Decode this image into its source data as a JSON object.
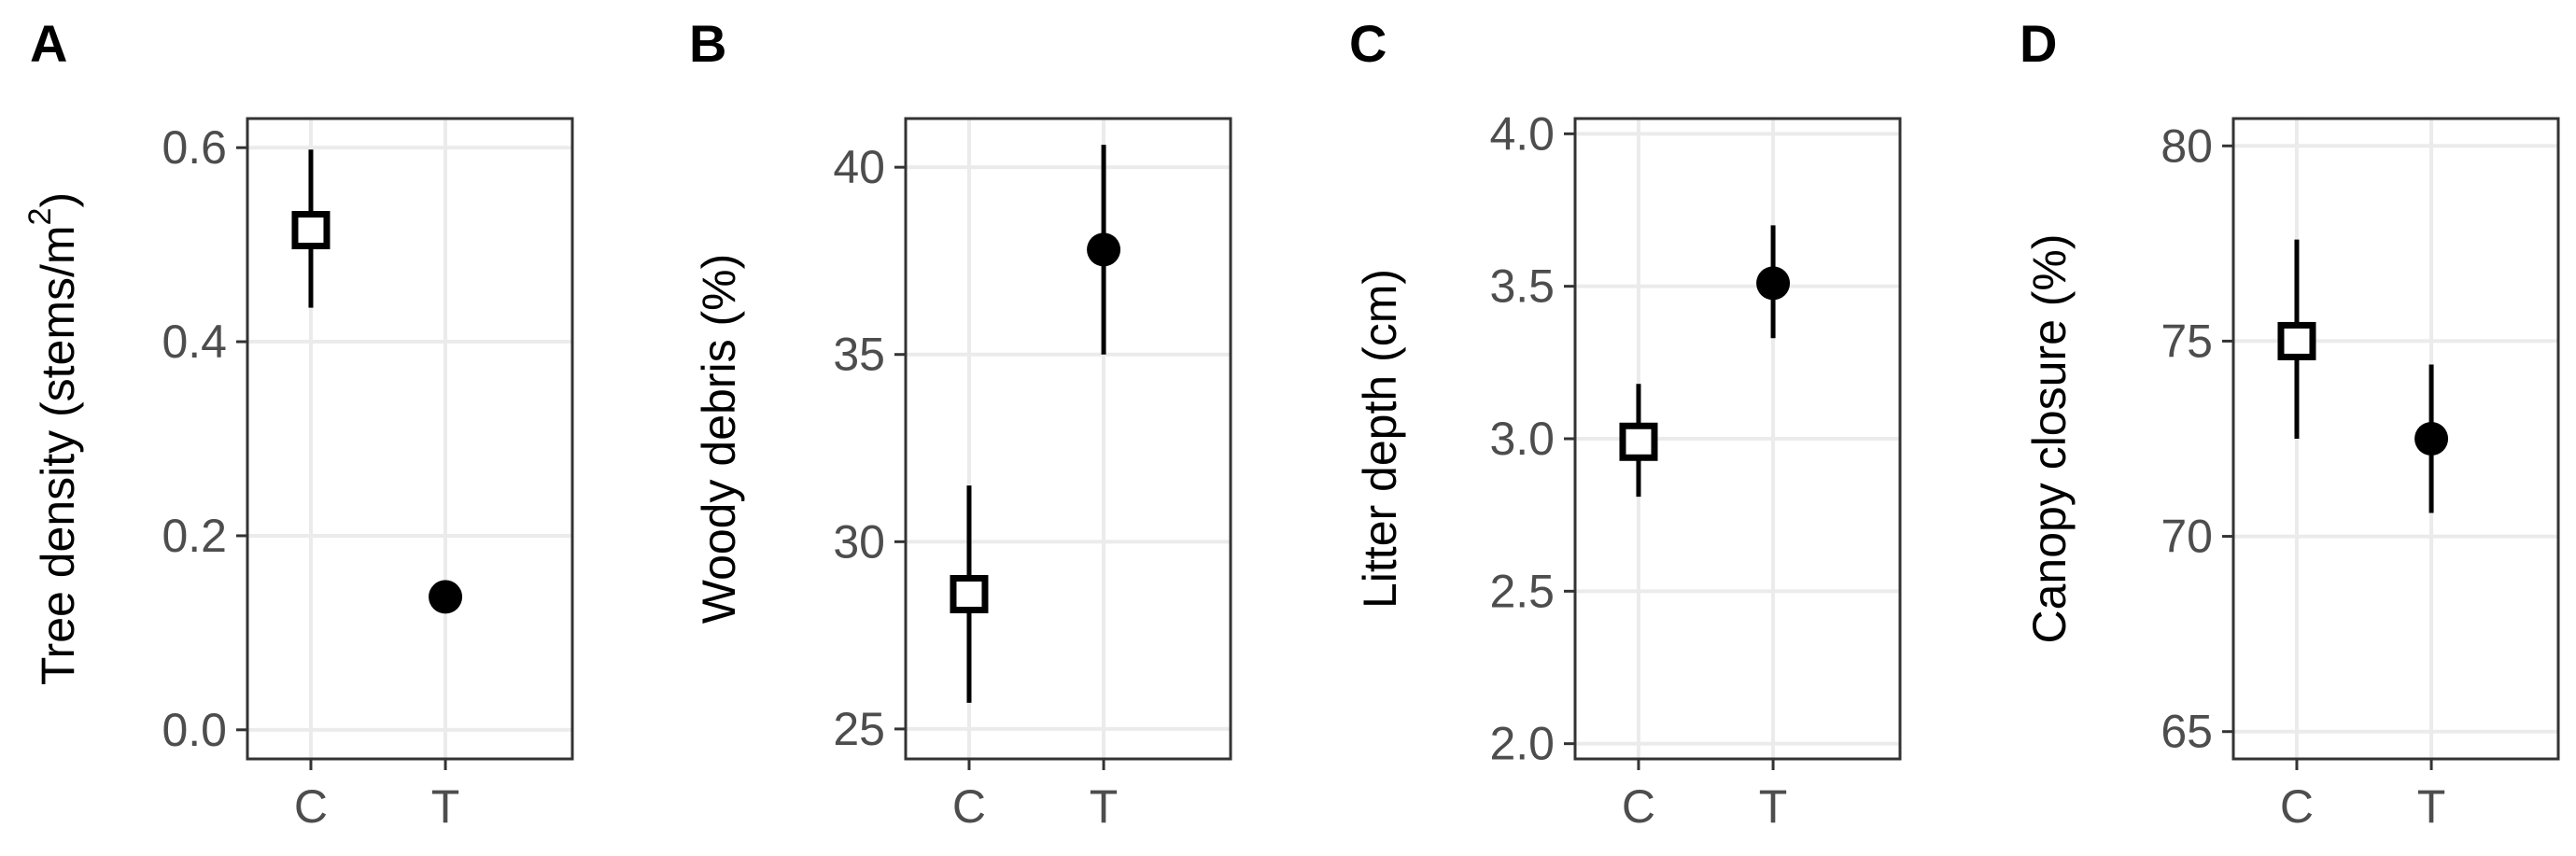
{
  "chart_data": [
    {
      "panel": "A",
      "type": "scatter",
      "ylabel": "Tree density (stems/m²)",
      "ylabel_main": "Tree density (stems/m",
      "ylabel_sup": "2",
      "ylabel_end": ")",
      "categories": [
        "C",
        "T"
      ],
      "ylim": [
        -0.03,
        0.63
      ],
      "yticks": [
        0.0,
        0.2,
        0.4,
        0.6
      ],
      "yticklabels": [
        "0.0",
        "0.2",
        "0.4",
        "0.6"
      ],
      "points": [
        {
          "x": "C",
          "y": 0.515,
          "lower": 0.435,
          "upper": 0.598,
          "marker": "open-square"
        },
        {
          "x": "T",
          "y": 0.137,
          "lower": 0.124,
          "upper": 0.15,
          "marker": "filled-circle"
        }
      ]
    },
    {
      "panel": "B",
      "type": "scatter",
      "ylabel": "Woody debris (%)",
      "categories": [
        "C",
        "T"
      ],
      "ylim": [
        24.2,
        41.3
      ],
      "yticks": [
        25,
        30,
        35,
        40
      ],
      "yticklabels": [
        "25",
        "30",
        "35",
        "40"
      ],
      "points": [
        {
          "x": "C",
          "y": 28.6,
          "lower": 25.7,
          "upper": 31.5,
          "marker": "open-square"
        },
        {
          "x": "T",
          "y": 37.8,
          "lower": 35.0,
          "upper": 40.6,
          "marker": "filled-circle"
        }
      ]
    },
    {
      "panel": "C",
      "type": "scatter",
      "ylabel": "Litter depth (cm)",
      "categories": [
        "C",
        "T"
      ],
      "ylim": [
        1.95,
        4.05
      ],
      "yticks": [
        2.0,
        2.5,
        3.0,
        3.5,
        4.0
      ],
      "yticklabels": [
        "2.0",
        "2.5",
        "3.0",
        "3.5",
        "4.0"
      ],
      "points": [
        {
          "x": "C",
          "y": 2.99,
          "lower": 2.81,
          "upper": 3.18,
          "marker": "open-square"
        },
        {
          "x": "T",
          "y": 3.51,
          "lower": 3.33,
          "upper": 3.7,
          "marker": "filled-circle"
        }
      ]
    },
    {
      "panel": "D",
      "type": "scatter",
      "ylabel": "Canopy closure (%)",
      "categories": [
        "C",
        "T"
      ],
      "ylim": [
        64.3,
        80.7
      ],
      "yticks": [
        65,
        70,
        75,
        80
      ],
      "yticklabels": [
        "65",
        "70",
        "75",
        "80"
      ],
      "points": [
        {
          "x": "C",
          "y": 75.0,
          "lower": 72.5,
          "upper": 77.6,
          "marker": "open-square"
        },
        {
          "x": "T",
          "y": 72.5,
          "lower": 70.6,
          "upper": 74.4,
          "marker": "filled-circle"
        }
      ]
    }
  ]
}
